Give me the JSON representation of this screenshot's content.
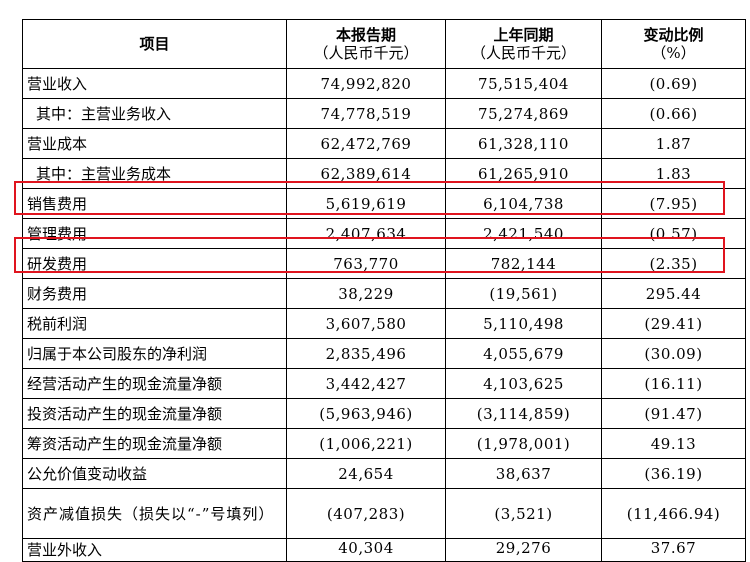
{
  "header": {
    "item": "项目",
    "current": "本报告期",
    "current_unit": "（人民币千元）",
    "prior": "上年同期",
    "prior_unit": "（人民币千元）",
    "change": "变动比例",
    "change_unit": "（%）"
  },
  "rows": [
    {
      "item": "营业收入",
      "current": "74,992,820",
      "prior": "75,515,404",
      "change": "(0.69)"
    },
    {
      "item": "其中：主营业务收入",
      "current": "74,778,519",
      "prior": "75,274,869",
      "change": "(0.66)"
    },
    {
      "item": "营业成本",
      "current": "62,472,769",
      "prior": "61,328,110",
      "change": "1.87"
    },
    {
      "item": "其中：主营业务成本",
      "current": "62,389,614",
      "prior": "61,265,910",
      "change": "1.83"
    },
    {
      "item": "销售费用",
      "current": "5,619,619",
      "prior": "6,104,738",
      "change": "(7.95)"
    },
    {
      "item": "管理费用",
      "current": "2,407,634",
      "prior": "2,421,540",
      "change": "(0.57)"
    },
    {
      "item": "研发费用",
      "current": "763,770",
      "prior": "782,144",
      "change": "(2.35)"
    },
    {
      "item": "财务费用",
      "current": "38,229",
      "prior": "(19,561)",
      "change": "295.44"
    },
    {
      "item": "税前利润",
      "current": "3,607,580",
      "prior": "5,110,498",
      "change": "(29.41)"
    },
    {
      "item": "归属于本公司股东的净利润",
      "current": "2,835,496",
      "prior": "4,055,679",
      "change": "(30.09)"
    },
    {
      "item": "经营活动产生的现金流量净额",
      "current": "3,442,427",
      "prior": "4,103,625",
      "change": "(16.11)"
    },
    {
      "item": "投资活动产生的现金流量净额",
      "current": "(5,963,946)",
      "prior": "(3,114,859)",
      "change": "(91.47)"
    },
    {
      "item": "筹资活动产生的现金流量净额",
      "current": "(1,006,221)",
      "prior": "(1,978,001)",
      "change": "49.13"
    },
    {
      "item": "公允价值变动收益",
      "current": "24,654",
      "prior": "38,637",
      "change": "(36.19)"
    },
    {
      "item": "资产减值损失（损失以“-”号填列）",
      "current": "(407,283)",
      "prior": "(3,521)",
      "change": "(11,466.94)"
    },
    {
      "item": "营业外收入",
      "current": "40,304",
      "prior": "29,276",
      "change": "37.67"
    }
  ]
}
